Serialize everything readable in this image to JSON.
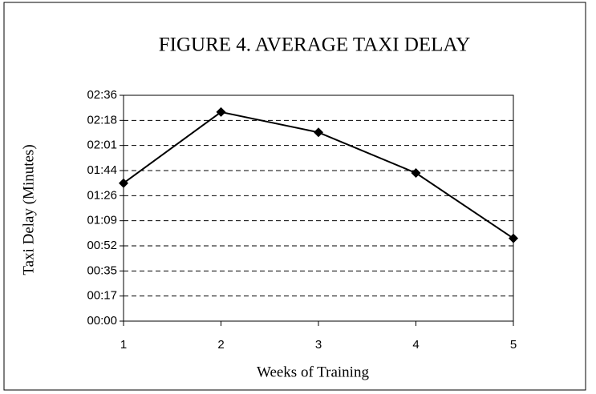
{
  "chart_data": {
    "type": "line",
    "title": "FIGURE 4.  AVERAGE TAXI DELAY",
    "xlabel": "Weeks of Training",
    "ylabel": "Taxi Delay (Minutes)",
    "x": [
      1,
      2,
      3,
      4,
      5
    ],
    "series": [
      {
        "name": "Average Taxi Delay",
        "color": "#000000",
        "values": [
          95,
          144,
          130,
          102,
          57
        ]
      }
    ],
    "xlim": [
      1,
      5
    ],
    "xticks": [
      1,
      2,
      3,
      4,
      5
    ],
    "ylim": [
      0,
      155.52
    ],
    "yticks": [
      {
        "value": 0,
        "label": "00:00"
      },
      {
        "value": 17.28,
        "label": "00:17"
      },
      {
        "value": 34.56,
        "label": "00:35"
      },
      {
        "value": 51.84,
        "label": "00:52"
      },
      {
        "value": 69.12,
        "label": "01:09"
      },
      {
        "value": 86.4,
        "label": "01:26"
      },
      {
        "value": 103.68,
        "label": "01:44"
      },
      {
        "value": 120.96,
        "label": "02:01"
      },
      {
        "value": 138.24,
        "label": "02:18"
      },
      {
        "value": 155.52,
        "label": "02:36"
      }
    ],
    "grid": true
  }
}
